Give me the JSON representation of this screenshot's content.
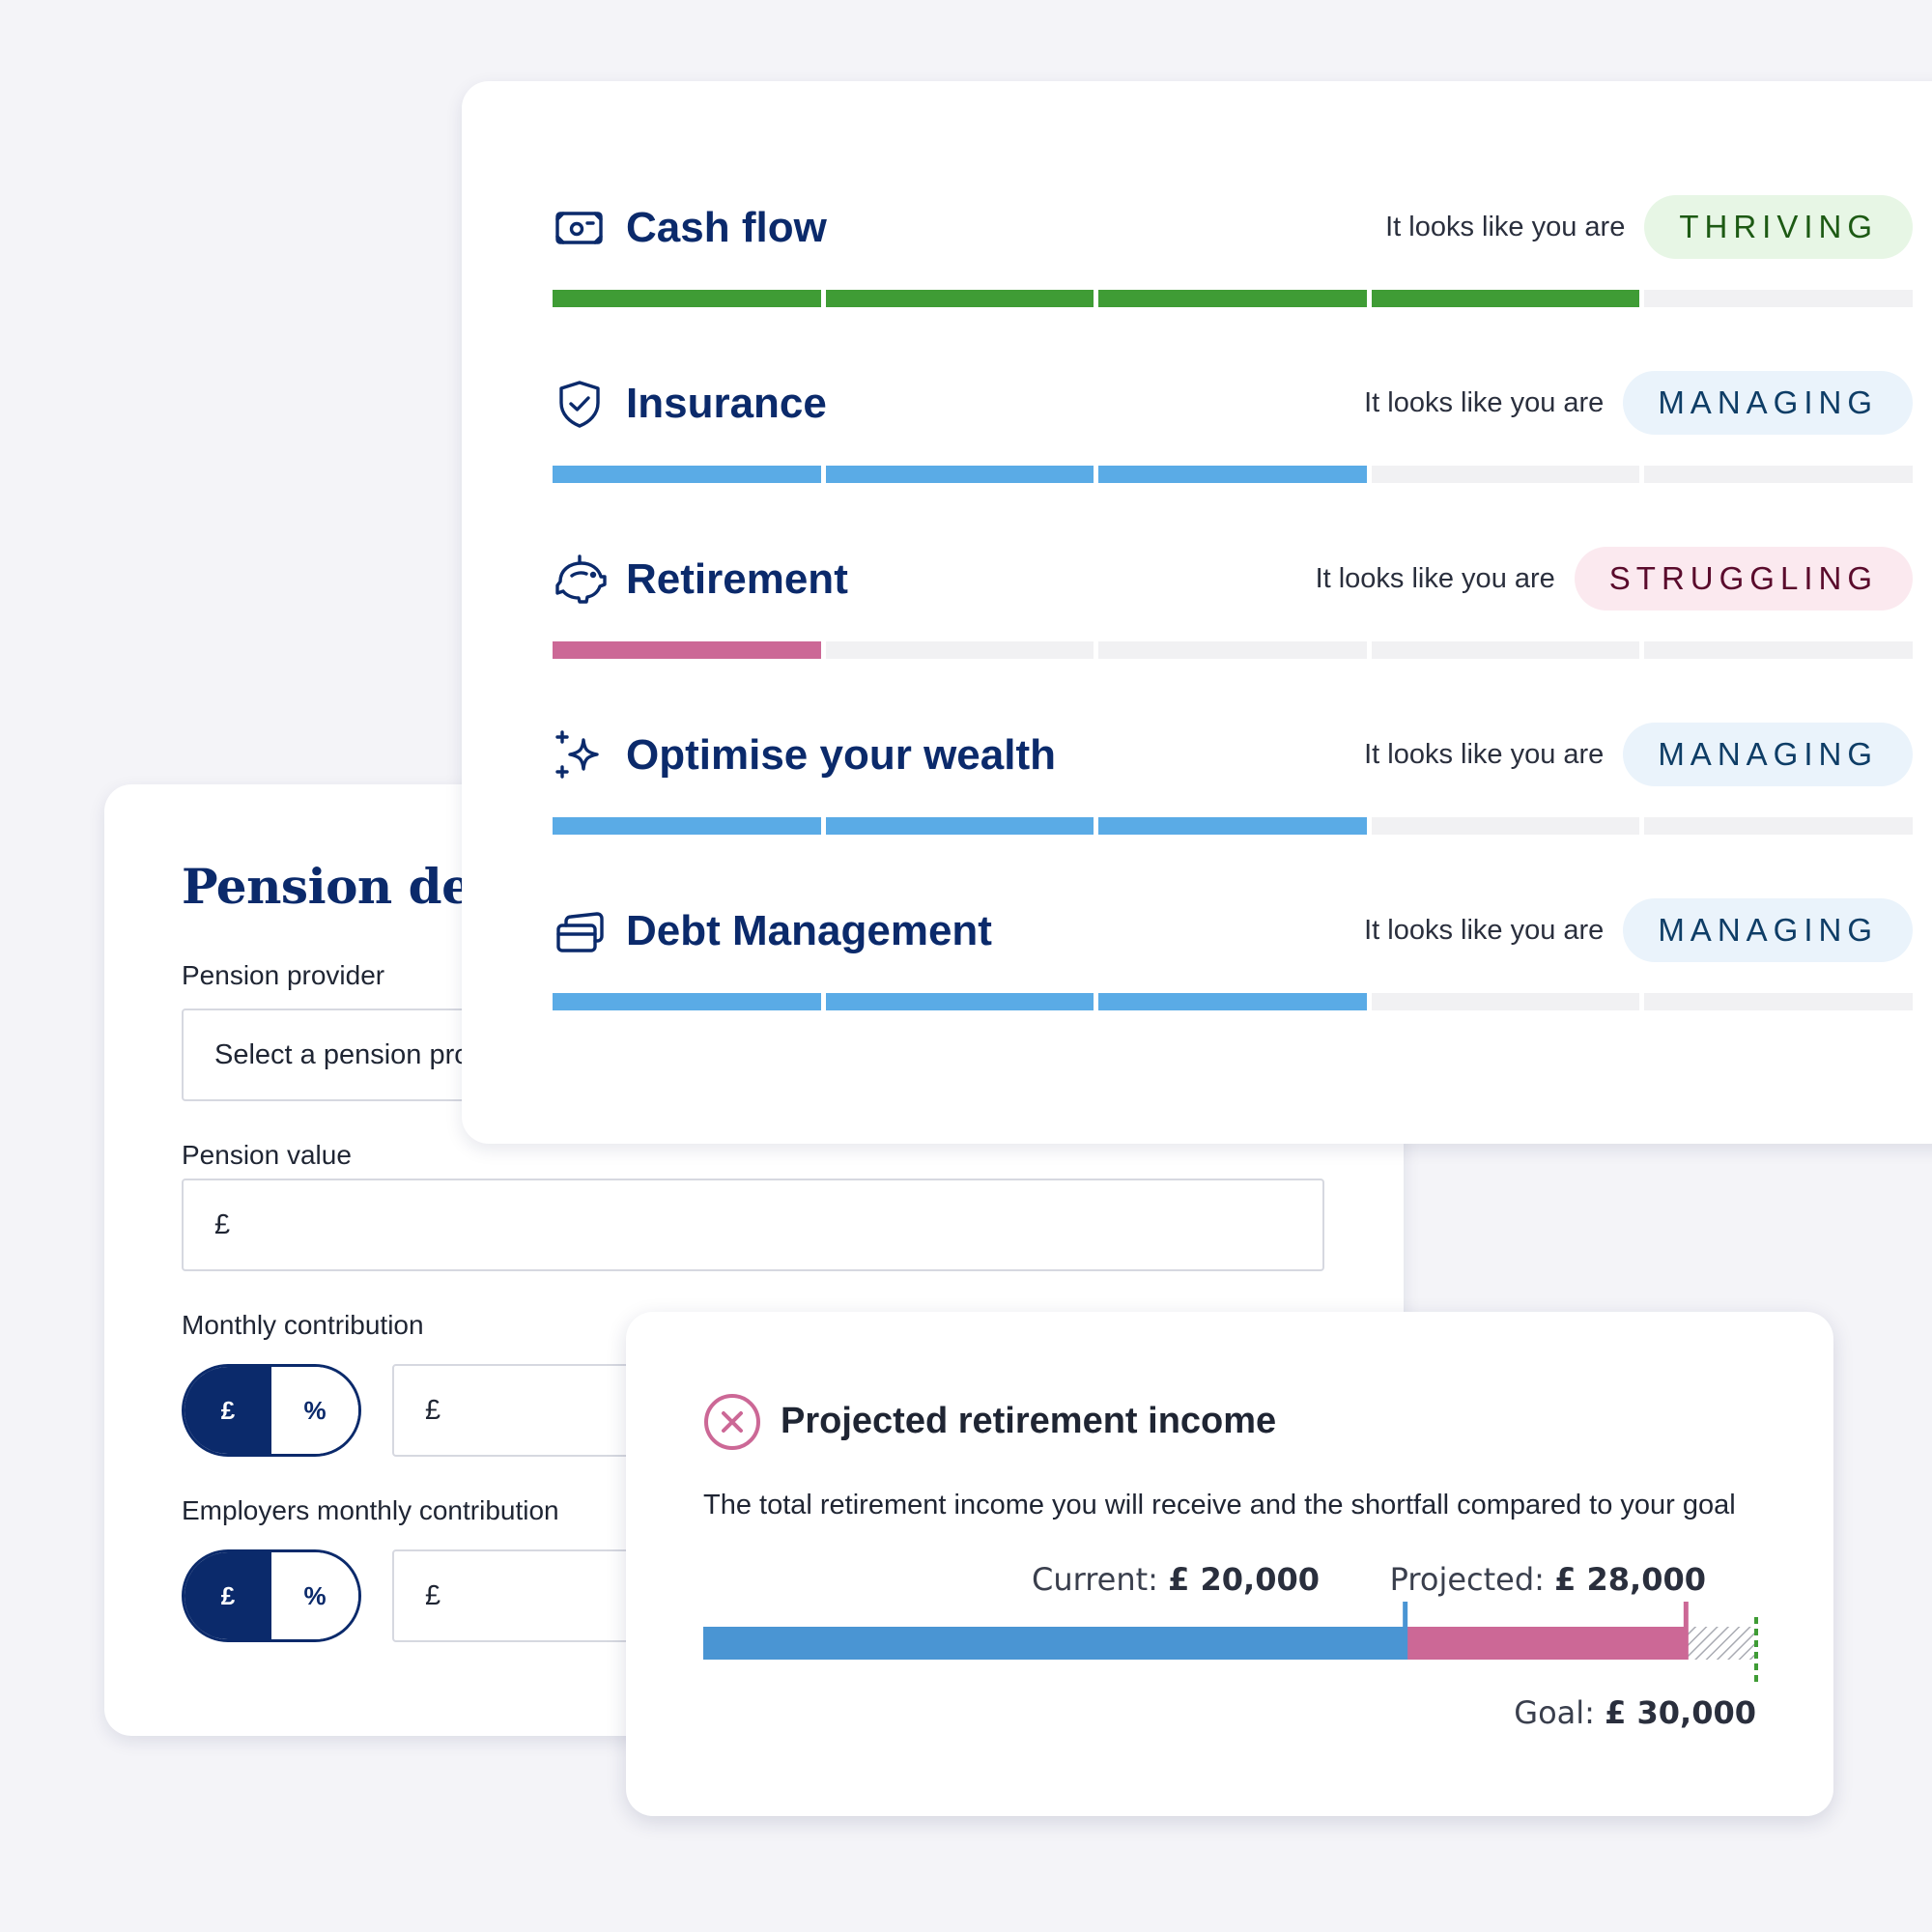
{
  "pension": {
    "title": "Pension details",
    "provider_label": "Pension provider",
    "provider_placeholder": "Select a pension provider",
    "value_label": "Pension value",
    "value_prefix": "£",
    "monthly_label": "Monthly contribution",
    "employer_label": "Employers monthly contribution",
    "toggle_pound": "£",
    "toggle_percent": "%",
    "amount_prefix": "£"
  },
  "wellbeing": {
    "status_prefix": "It looks like you are",
    "rows": [
      {
        "title": "Cash flow",
        "icon": "cash-icon",
        "status": "THRIVING",
        "progress": 0.8,
        "color": "#3f9c35"
      },
      {
        "title": "Insurance",
        "icon": "shield-icon",
        "status": "MANAGING",
        "progress": 0.6,
        "color": "#5aabe6"
      },
      {
        "title": "Retirement",
        "icon": "piggy-bank-icon",
        "status": "STRUGGLING",
        "progress": 0.2,
        "color": "#cc6896"
      },
      {
        "title": "Optimise your wealth",
        "icon": "sparkle-icon",
        "status": "MANAGING",
        "progress": 0.6,
        "color": "#5aabe6"
      },
      {
        "title": "Debt Management",
        "icon": "cards-icon",
        "status": "MANAGING",
        "progress": 0.6,
        "color": "#5aabe6"
      }
    ]
  },
  "income": {
    "icon": "close-circle-icon",
    "title": "Projected retirement income",
    "description": "The total retirement income you will receive and the shortfall compared to your goal",
    "current_label": "Current:",
    "current_value": "£ 20,000",
    "projected_label": "Projected:",
    "projected_value": "£ 28,000",
    "goal_label": "Goal:",
    "goal_value": "£ 30,000",
    "colors": {
      "current": "#4a95d3",
      "projected": "#cc6896",
      "goal": "#3f9c35"
    }
  },
  "chart_data": {
    "type": "bar",
    "categories": [
      "Current",
      "Projected",
      "Goal"
    ],
    "values": [
      20000,
      28000,
      30000
    ]
  }
}
